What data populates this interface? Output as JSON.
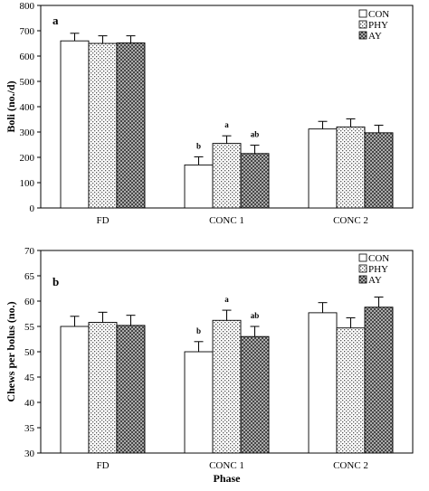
{
  "chart_data": [
    {
      "type": "bar",
      "panel_label": "a",
      "title": "",
      "xlabel": "",
      "ylabel": "Boli (no./d)",
      "ylim": [
        0,
        800
      ],
      "yticks": [
        "0",
        "100",
        "200",
        "300",
        "400",
        "500",
        "600",
        "700",
        "800"
      ],
      "categories": [
        "FD",
        "CONC 1",
        "CONC 2"
      ],
      "grid": false,
      "legend_position": "top-right",
      "series": [
        {
          "name": "CON",
          "pattern": "white",
          "values": [
            660,
            170,
            312
          ],
          "errors": [
            30,
            32,
            30
          ],
          "labels": [
            "",
            "b",
            ""
          ]
        },
        {
          "name": "PHY",
          "pattern": "dots",
          "values": [
            650,
            255,
            320
          ],
          "errors": [
            30,
            30,
            32
          ],
          "labels": [
            "",
            "a",
            ""
          ]
        },
        {
          "name": "AY",
          "pattern": "crosshatch",
          "values": [
            652,
            215,
            297
          ],
          "errors": [
            28,
            33,
            30
          ],
          "labels": [
            "",
            "ab",
            ""
          ]
        }
      ]
    },
    {
      "type": "bar",
      "panel_label": "b",
      "title": "",
      "xlabel": "Phase",
      "ylabel": "Chews per bolus (no.)",
      "ylim": [
        30,
        70
      ],
      "yticks": [
        "30",
        "35",
        "40",
        "45",
        "50",
        "55",
        "60",
        "65",
        "70"
      ],
      "categories": [
        "FD",
        "CONC 1",
        "CONC 2"
      ],
      "grid": false,
      "legend_position": "top-right",
      "series": [
        {
          "name": "CON",
          "pattern": "white",
          "values": [
            55.0,
            50.0,
            57.7
          ],
          "errors": [
            2.0,
            2.0,
            2.0
          ],
          "labels": [
            "",
            "b",
            ""
          ]
        },
        {
          "name": "PHY",
          "pattern": "dots",
          "values": [
            55.8,
            56.2,
            54.7
          ],
          "errors": [
            2.0,
            2.0,
            2.0
          ],
          "labels": [
            "",
            "a",
            ""
          ]
        },
        {
          "name": "AY",
          "pattern": "crosshatch",
          "values": [
            55.2,
            53.0,
            58.8
          ],
          "errors": [
            2.0,
            2.0,
            2.0
          ],
          "labels": [
            "",
            "ab",
            ""
          ]
        }
      ]
    }
  ]
}
